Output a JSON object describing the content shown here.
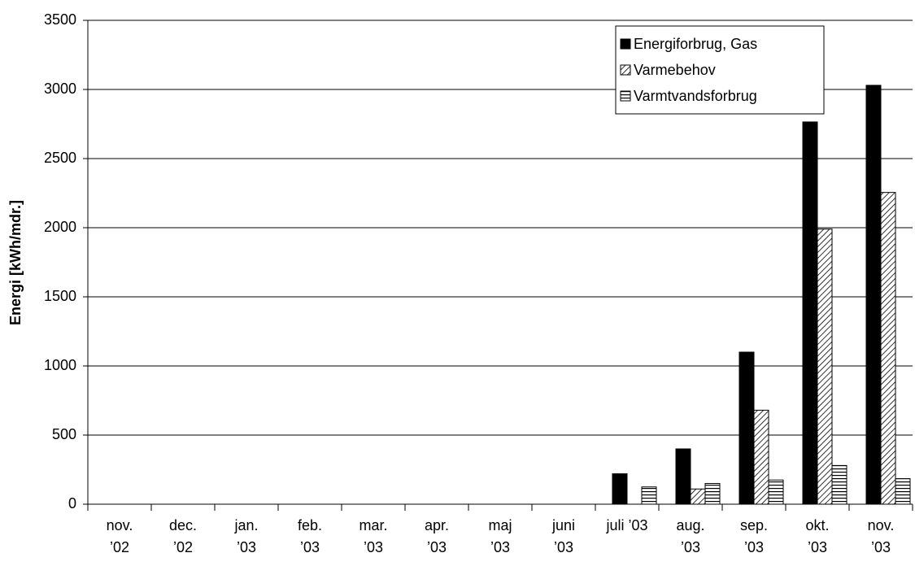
{
  "chart_data": {
    "type": "bar",
    "y_label": "Energi  [kWh/mdr.]",
    "categories": [
      [
        "nov.",
        "’02"
      ],
      [
        "dec.",
        "’02"
      ],
      [
        "jan.",
        "’03"
      ],
      [
        "feb.",
        "’03"
      ],
      [
        "mar.",
        "’03"
      ],
      [
        "apr.",
        "’03"
      ],
      [
        "maj",
        "’03"
      ],
      [
        "juni",
        "’03"
      ],
      [
        "juli  ’03"
      ],
      [
        "aug.",
        "’03"
      ],
      [
        "sep.",
        "’03"
      ],
      [
        "okt.",
        "’03"
      ],
      [
        "nov.",
        "’03"
      ]
    ],
    "series": [
      {
        "name": "Energiforbrug, Gas",
        "color": "#000000",
        "pattern": "solid",
        "values": [
          null,
          null,
          null,
          null,
          null,
          null,
          null,
          null,
          220,
          400,
          1100,
          2765,
          3030
        ]
      },
      {
        "name": "Varmebehov",
        "color": "#000000",
        "pattern": "diagonal",
        "values": [
          null,
          null,
          null,
          null,
          null,
          null,
          null,
          null,
          null,
          110,
          680,
          1990,
          2255
        ]
      },
      {
        "name": "Varmtvandsforbrug",
        "color": "#000000",
        "pattern": "horizontal",
        "values": [
          null,
          null,
          null,
          null,
          null,
          null,
          null,
          null,
          125,
          150,
          175,
          280,
          185
        ]
      }
    ],
    "ylim": [
      0,
      3500
    ],
    "yticks": [
      0,
      500,
      1000,
      1500,
      2000,
      2500,
      3000,
      3500
    ],
    "grid": true,
    "legend": "upper right"
  }
}
